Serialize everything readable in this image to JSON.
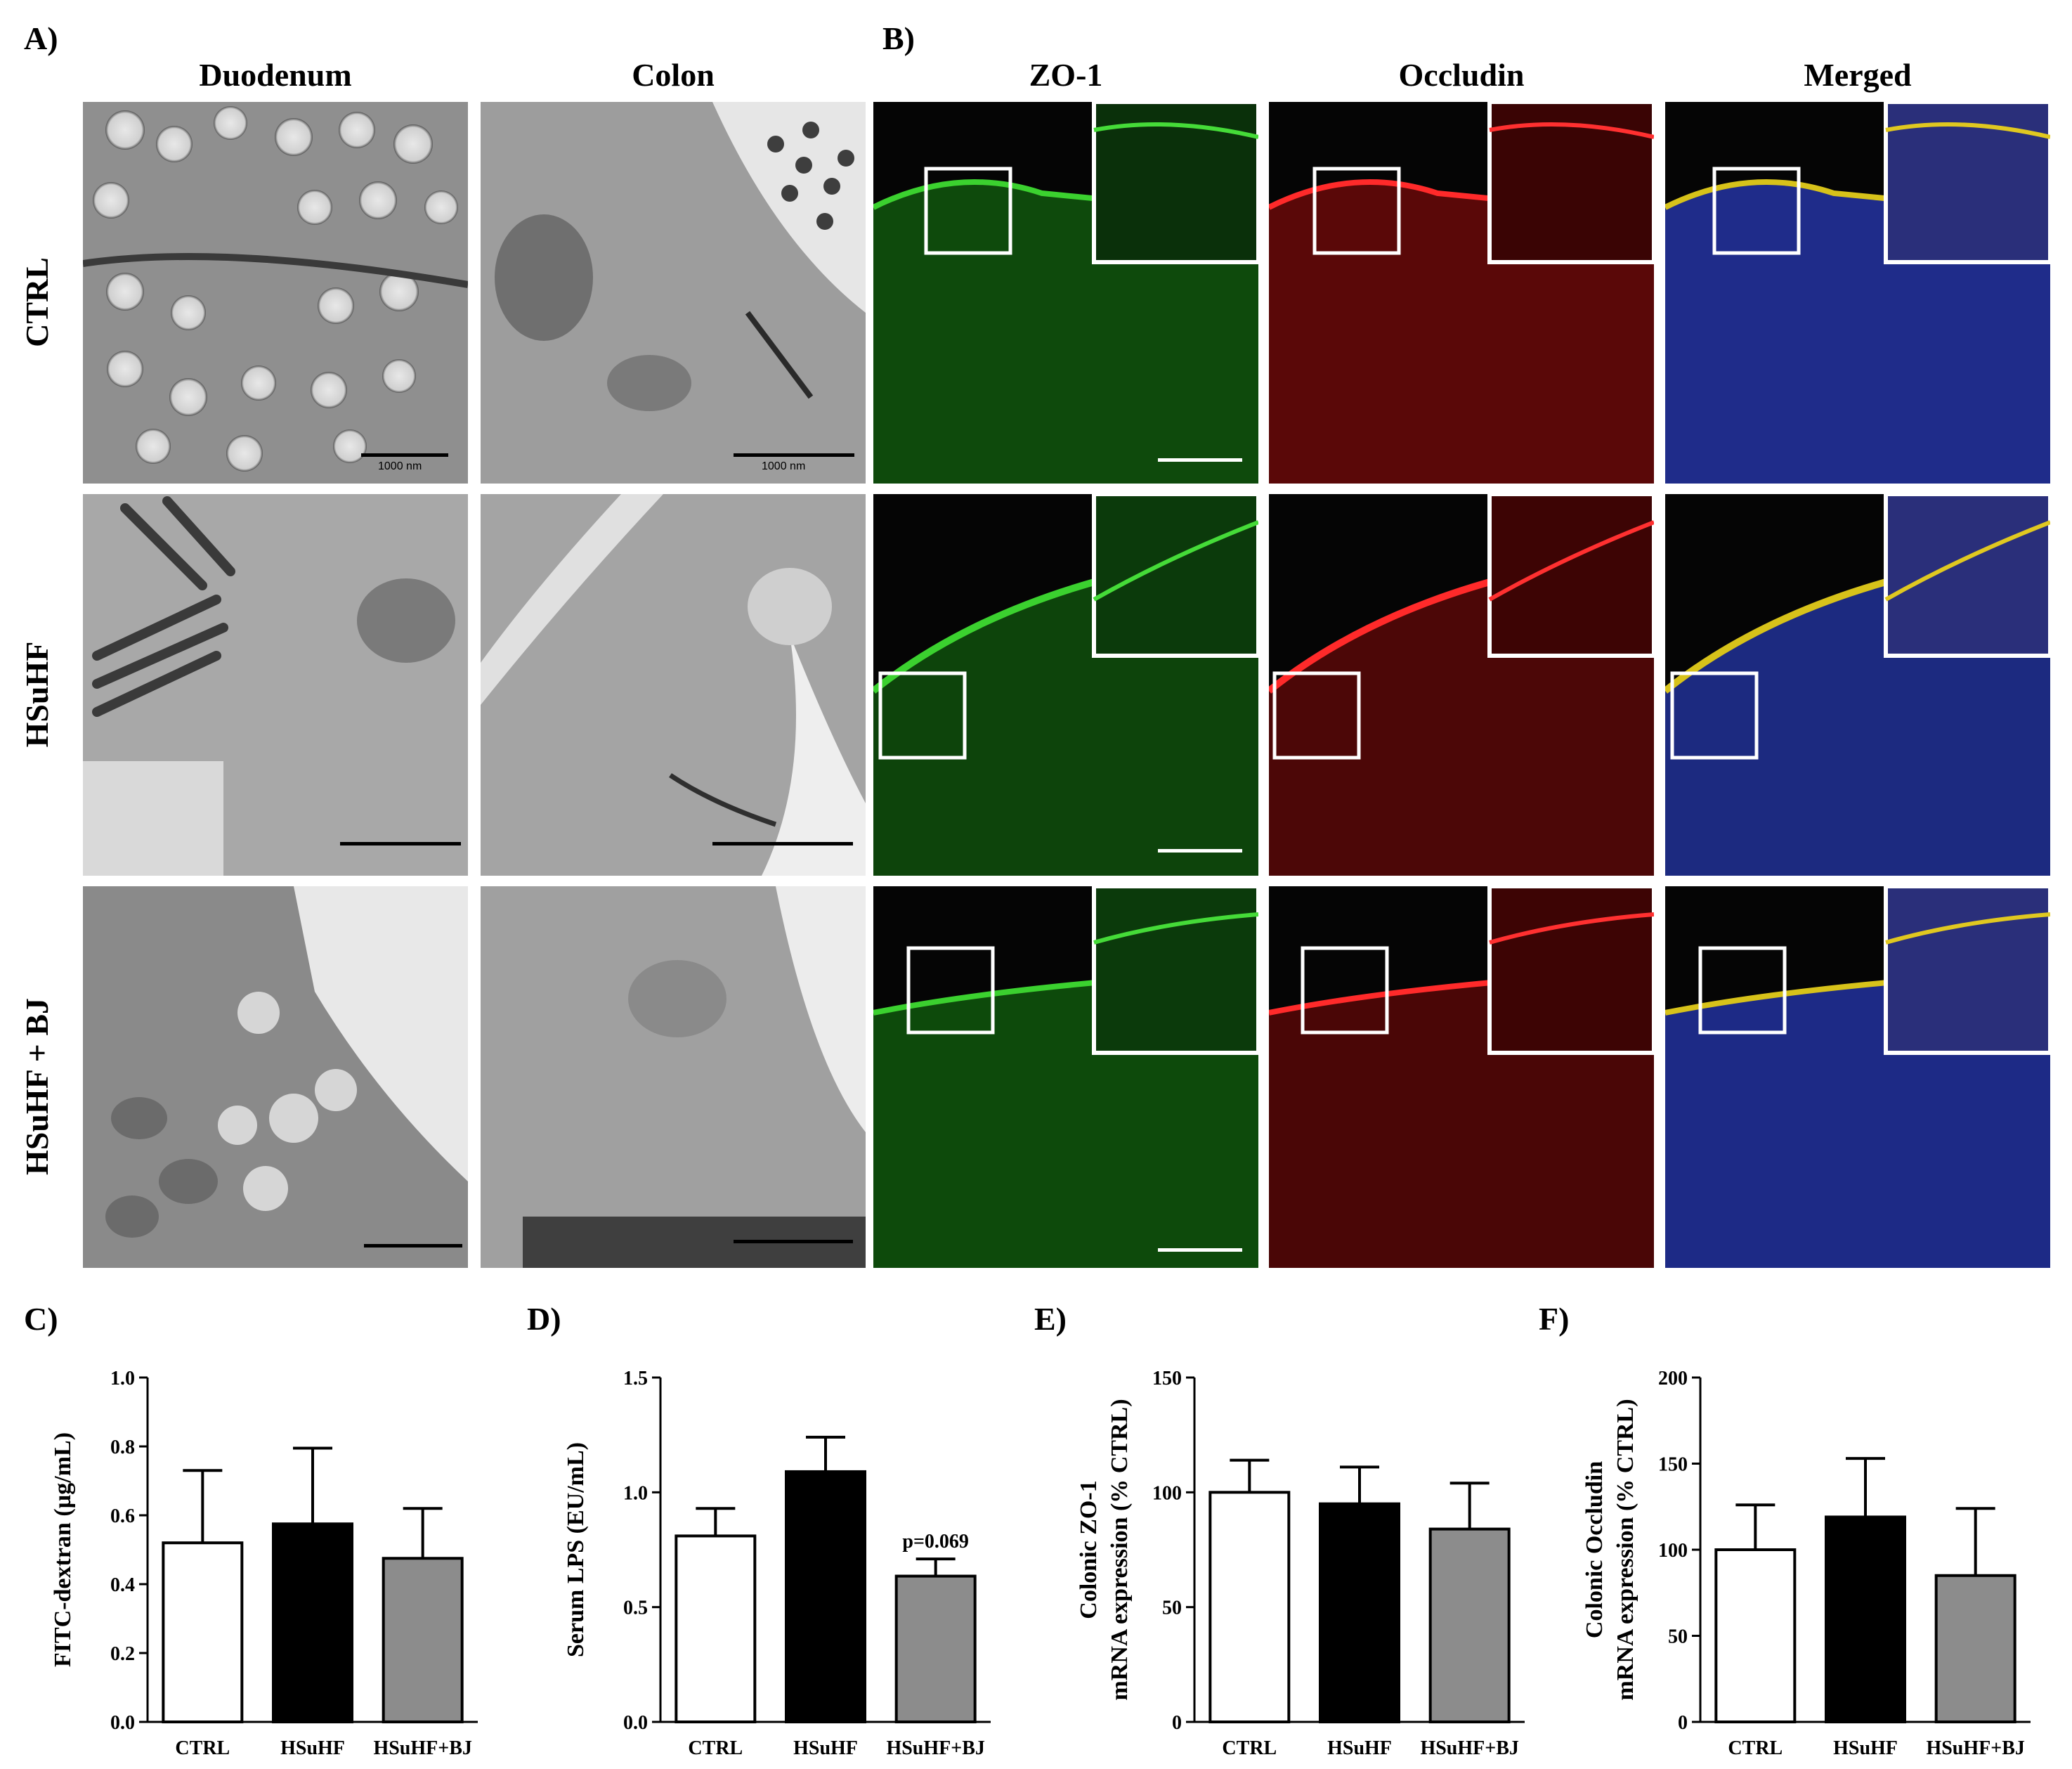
{
  "panel_labels": {
    "a": "A)",
    "b": "B)",
    "c": "C)",
    "d": "D)",
    "e": "E)",
    "f": "F)"
  },
  "tem": {
    "columns": [
      "Duodenum",
      "Colon"
    ],
    "rows": [
      "CTRL",
      "HSuHF",
      "HSuHF + BJ"
    ],
    "scalebar_text": "1000 nm"
  },
  "confocal": {
    "columns": [
      "ZO-1",
      "Occludin",
      "Merged"
    ],
    "channel_colors": {
      "zo1": "#27c41f",
      "occludin": "#e3191b",
      "nuclei": "#2e3cd6",
      "merged": "#d7c21a"
    }
  },
  "chart_data": [
    {
      "type": "bar",
      "id": "C",
      "categories": [
        "CTRL",
        "HSuHF",
        "HSuHF+BJ"
      ],
      "values": [
        0.52,
        0.575,
        0.475
      ],
      "errors": [
        0.21,
        0.22,
        0.145
      ],
      "ylabel": "FITC-dextran (µg/mL)",
      "ylabel2": "",
      "ylim": [
        0,
        1.0
      ],
      "ticks": [
        "0.0",
        "0.2",
        "0.4",
        "0.6",
        "0.8",
        "1.0"
      ],
      "tickvals": [
        0,
        0.2,
        0.4,
        0.6,
        0.8,
        1.0
      ],
      "fills": [
        "#ffffff",
        "#000000",
        "#8c8c8c"
      ],
      "annotation": ""
    },
    {
      "type": "bar",
      "id": "D",
      "categories": [
        "CTRL",
        "HSuHF",
        "HSuHF+BJ"
      ],
      "values": [
        0.81,
        1.09,
        0.635
      ],
      "errors": [
        0.12,
        0.15,
        0.075
      ],
      "ylabel": "Serum LPS (EU/mL)",
      "ylabel2": "",
      "ylim": [
        0,
        1.5
      ],
      "ticks": [
        "0.0",
        "0.5",
        "1.0",
        "1.5"
      ],
      "tickvals": [
        0,
        0.5,
        1.0,
        1.5
      ],
      "fills": [
        "#ffffff",
        "#000000",
        "#8c8c8c"
      ],
      "annotation": "p=0.069"
    },
    {
      "type": "bar",
      "id": "E",
      "categories": [
        "CTRL",
        "HSuHF",
        "HSuHF+BJ"
      ],
      "values": [
        100,
        95,
        84
      ],
      "errors": [
        14,
        16,
        20
      ],
      "ylabel": "Colonic ZO-1",
      "ylabel2": "mRNA expression (% CTRL)",
      "ylim": [
        0,
        150
      ],
      "ticks": [
        "0",
        "50",
        "100",
        "150"
      ],
      "tickvals": [
        0,
        50,
        100,
        150
      ],
      "fills": [
        "#ffffff",
        "#000000",
        "#8c8c8c"
      ],
      "annotation": ""
    },
    {
      "type": "bar",
      "id": "F",
      "categories": [
        "CTRL",
        "HSuHF",
        "HSuHF+BJ"
      ],
      "values": [
        100,
        119,
        85
      ],
      "errors": [
        26,
        34,
        39
      ],
      "ylabel": "Colonic Occludin",
      "ylabel2": "mRNA expression (% CTRL)",
      "ylim": [
        0,
        200
      ],
      "ticks": [
        "0",
        "50",
        "100",
        "150",
        "200"
      ],
      "tickvals": [
        0,
        50,
        100,
        150,
        200
      ],
      "fills": [
        "#ffffff",
        "#000000",
        "#8c8c8c"
      ],
      "annotation": ""
    }
  ]
}
